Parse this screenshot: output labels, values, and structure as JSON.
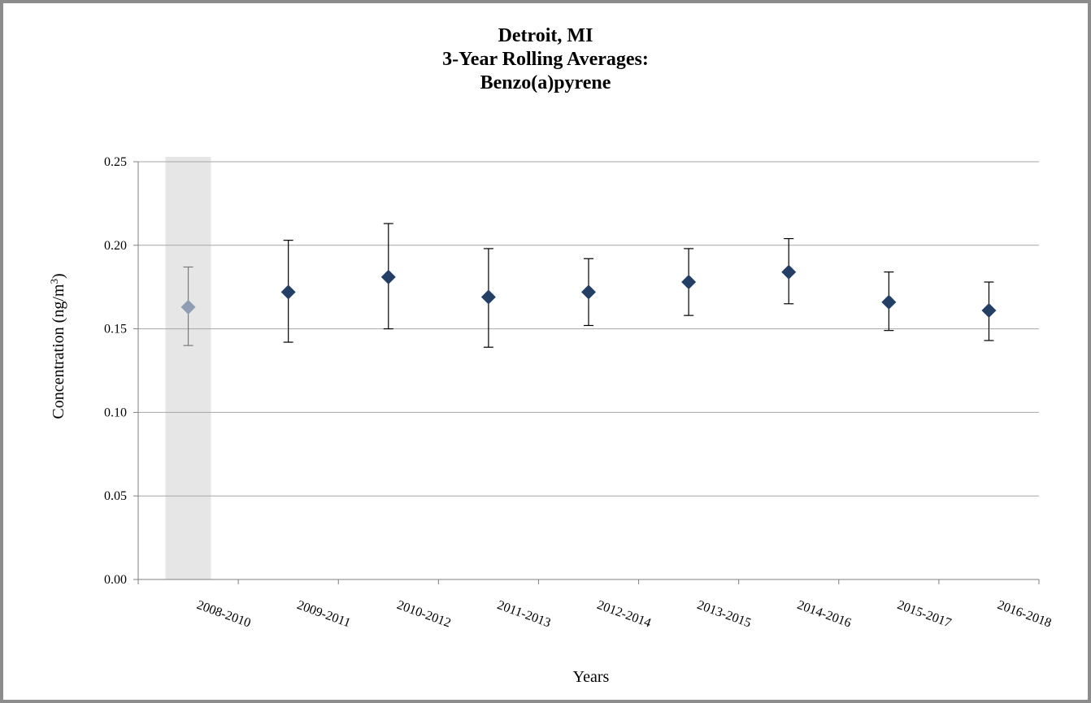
{
  "chart_data": {
    "type": "scatter",
    "title_lines": [
      "Detroit, MI",
      "3-Year Rolling Averages:",
      "Benzo(a)pyrene"
    ],
    "xlabel": "Years",
    "ylabel_main": "Concentration (ng/m",
    "ylabel_sup": "3",
    "ylabel_end": ")",
    "ylim": [
      0,
      0.25
    ],
    "yticks": [
      "0.00",
      "0.05",
      "0.10",
      "0.15",
      "0.20",
      "0.25"
    ],
    "grid": true,
    "categories": [
      "2008-2010",
      "2009-2011",
      "2010-2012",
      "2011-2013",
      "2012-2014",
      "2013-2015",
      "2014-2016",
      "2015-2017",
      "2016-2018"
    ],
    "values": [
      0.163,
      0.172,
      0.181,
      0.169,
      0.172,
      0.178,
      0.184,
      0.166,
      0.161
    ],
    "error_low": [
      0.14,
      0.142,
      0.15,
      0.139,
      0.152,
      0.158,
      0.165,
      0.149,
      0.143
    ],
    "error_high": [
      0.187,
      0.203,
      0.213,
      0.198,
      0.192,
      0.198,
      0.204,
      0.184,
      0.178
    ],
    "shaded_categories": [
      "2008-2010"
    ],
    "colors": {
      "marker": "#243f66",
      "marker_shaded": "#8e9db3",
      "error_bar": "#000000",
      "error_bar_shaded": "#7a7a7a",
      "shade": "#e6e6e6",
      "grid": "#a6a6a6"
    }
  }
}
